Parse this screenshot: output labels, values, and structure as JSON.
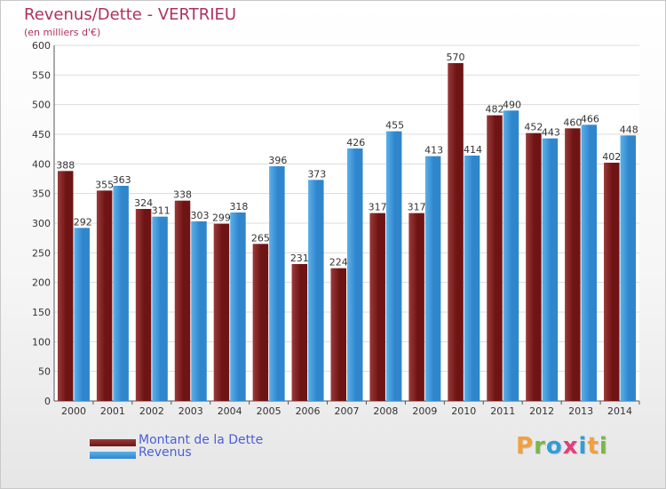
{
  "header": {
    "title": "Revenus/Dette - VERTRIEU",
    "subtitle": "(en milliers d'€)"
  },
  "legend": {
    "debt_label": "Montant de la Dette",
    "revenue_label": "Revenus"
  },
  "logo": {
    "letters": [
      "P",
      "r",
      "o",
      "x",
      "i",
      "t",
      "i"
    ],
    "colors": [
      "#f2a03d",
      "#7ab648",
      "#2f9ed8",
      "#e0407a",
      "#2f9ed8",
      "#f2a03d",
      "#7ab648"
    ]
  },
  "colors": {
    "debt": "#6e1414",
    "debt_light": "#9b3a3a",
    "revenue": "#2f86cc",
    "revenue_light": "#5bb0ea",
    "axis_text": "#333333"
  },
  "chart_data": {
    "type": "bar",
    "categories": [
      "2000",
      "2001",
      "2002",
      "2003",
      "2004",
      "2005",
      "2006",
      "2007",
      "2008",
      "2009",
      "2010",
      "2011",
      "2012",
      "2013",
      "2014"
    ],
    "series": [
      {
        "name": "Montant de la Dette",
        "values": [
          388,
          355,
          324,
          338,
          299,
          265,
          231,
          224,
          317,
          317,
          570,
          482,
          452,
          460,
          402
        ]
      },
      {
        "name": "Revenus",
        "values": [
          292,
          363,
          311,
          303,
          318,
          396,
          373,
          426,
          455,
          413,
          414,
          490,
          443,
          466,
          448
        ]
      }
    ],
    "ylim": [
      0,
      600
    ],
    "yticks": [
      0,
      50,
      100,
      150,
      200,
      250,
      300,
      350,
      400,
      450,
      500,
      550,
      600
    ],
    "grid": true,
    "legend_position": "bottom-left"
  }
}
